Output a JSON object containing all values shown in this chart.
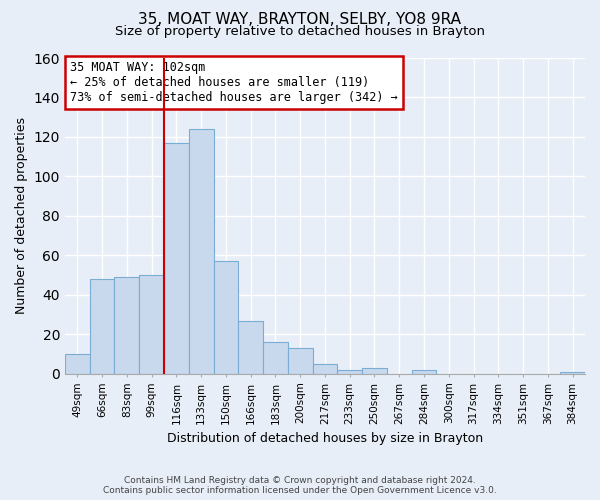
{
  "title": "35, MOAT WAY, BRAYTON, SELBY, YO8 9RA",
  "subtitle": "Size of property relative to detached houses in Brayton",
  "xlabel": "Distribution of detached houses by size in Brayton",
  "ylabel": "Number of detached properties",
  "bar_labels": [
    "49sqm",
    "66sqm",
    "83sqm",
    "99sqm",
    "116sqm",
    "133sqm",
    "150sqm",
    "166sqm",
    "183sqm",
    "200sqm",
    "217sqm",
    "233sqm",
    "250sqm",
    "267sqm",
    "284sqm",
    "300sqm",
    "317sqm",
    "334sqm",
    "351sqm",
    "367sqm",
    "384sqm"
  ],
  "bar_values": [
    10,
    48,
    49,
    50,
    117,
    124,
    57,
    27,
    16,
    13,
    5,
    2,
    3,
    0,
    2,
    0,
    0,
    0,
    0,
    0,
    1
  ],
  "bar_color": "#c8d9ee",
  "bar_edge_color": "#7aadd4",
  "vline_x": 3.5,
  "vline_color": "#cc0000",
  "ylim": [
    0,
    160
  ],
  "yticks": [
    0,
    20,
    40,
    60,
    80,
    100,
    120,
    140,
    160
  ],
  "annotation_line0": "35 MOAT WAY: 102sqm",
  "annotation_line1": "← 25% of detached houses are smaller (119)",
  "annotation_line2": "73% of semi-detached houses are larger (342) →",
  "annotation_box_color": "#ffffff",
  "annotation_box_edge": "#cc0000",
  "footer_line1": "Contains HM Land Registry data © Crown copyright and database right 2024.",
  "footer_line2": "Contains public sector information licensed under the Open Government Licence v3.0.",
  "background_color": "#e8eef7",
  "grid_color": "#ffffff",
  "title_fontsize": 11,
  "subtitle_fontsize": 9.5,
  "ylabel_fontsize": 9,
  "xlabel_fontsize": 9,
  "tick_fontsize": 7.5,
  "footer_fontsize": 6.5,
  "annotation_fontsize": 8.5
}
